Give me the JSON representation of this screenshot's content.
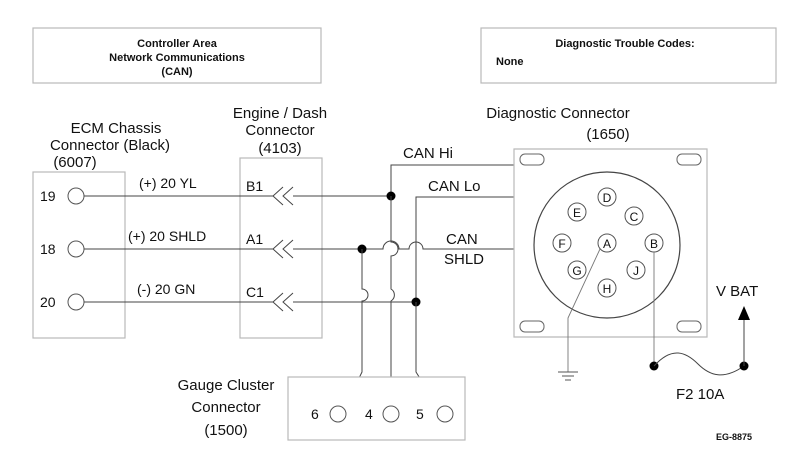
{
  "can_box": {
    "line1": "Controller Area",
    "line2": "Network Communications",
    "line3": "(CAN)"
  },
  "dtc_box": {
    "title": "Diagnostic Trouble Codes:",
    "value": "None"
  },
  "ecm": {
    "title1": "ECM Chassis",
    "title2": "Connector (Black)",
    "part": "(6007)",
    "pins": [
      "19",
      "18",
      "20"
    ]
  },
  "engine_dash": {
    "title1": "Engine / Dash",
    "title2": "Connector",
    "part": "(4103)",
    "pins": [
      "B1",
      "A1",
      "C1"
    ]
  },
  "wires": {
    "w1": "(+) 20 YL",
    "w2": "(+) 20 SHLD",
    "w3": "(-) 20 GN"
  },
  "diag": {
    "title": "Diagnostic Connector",
    "part": "(1650)",
    "can_hi": "CAN Hi",
    "can_lo": "CAN Lo",
    "can_shld1": "CAN",
    "can_shld2": "SHLD",
    "pins": [
      "D",
      "E",
      "C",
      "F",
      "A",
      "B",
      "G",
      "J",
      "H"
    ]
  },
  "gauge": {
    "title1": "Gauge Cluster",
    "title2": "Connector",
    "part": "(1500)",
    "pins": [
      "6",
      "4",
      "5"
    ]
  },
  "power": {
    "vbat": "V BAT",
    "fuse": "F2 10A"
  },
  "figure_tag": "EG-8875"
}
